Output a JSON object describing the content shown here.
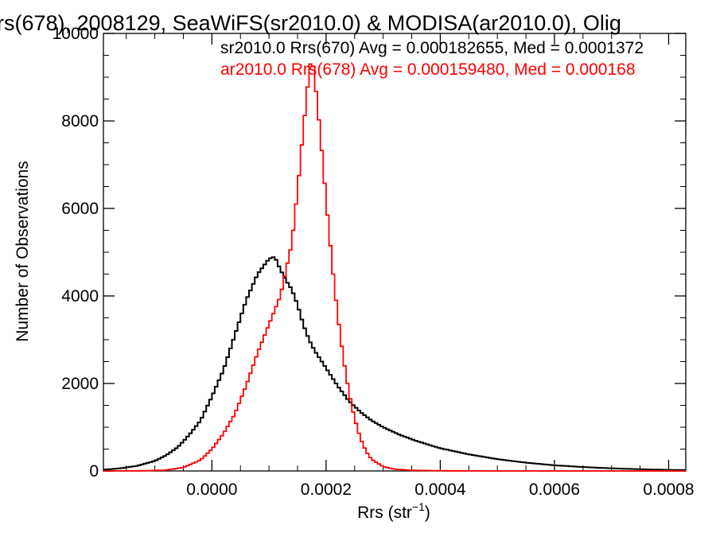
{
  "chart_data": {
    "type": "histogram",
    "title": "rs(678), 2008129, SeaWiFS(sr2010.0) & MODISA(ar2010.0), Olig",
    "xlabel_main": "Rrs (str",
    "xlabel_sup": "−1",
    "xlabel_tail": ")",
    "ylabel": "Number of Observations",
    "xlim": [
      -0.00019,
      0.00083
    ],
    "ylim": [
      0,
      10000
    ],
    "x_ticks": [
      {
        "value": 0.0,
        "label": "0.0000"
      },
      {
        "value": 0.0002,
        "label": "0.0002"
      },
      {
        "value": 0.0004,
        "label": "0.0004"
      },
      {
        "value": 0.0006,
        "label": "0.0006"
      },
      {
        "value": 0.0008,
        "label": "0.0008"
      }
    ],
    "y_ticks": [
      {
        "value": 0,
        "label": "0"
      },
      {
        "value": 2000,
        "label": "2000"
      },
      {
        "value": 4000,
        "label": "4000"
      },
      {
        "value": 6000,
        "label": "6000"
      },
      {
        "value": 8000,
        "label": "8000"
      },
      {
        "value": 10000,
        "label": "10000"
      }
    ],
    "legend": [
      {
        "text": "sr2010.0 Rrs(670) Avg = 0.000182655, Med = 0.0001372",
        "color": "#000000"
      },
      {
        "text": "ar2010.0 Rrs(678) Avg = 0.000159480, Med = 0.000168",
        "color": "#ff0000"
      }
    ],
    "series": [
      {
        "name": "sr2010.0 Rrs(670)",
        "color": "#000000",
        "points": [
          [
            -0.00019,
            30
          ],
          [
            -0.00016,
            60
          ],
          [
            -0.00013,
            120
          ],
          [
            -0.0001,
            230
          ],
          [
            -8e-05,
            360
          ],
          [
            -6e-05,
            540
          ],
          [
            -4e-05,
            820
          ],
          [
            -2e-05,
            1150
          ],
          [
            0.0,
            1700
          ],
          [
            2e-05,
            2300
          ],
          [
            4e-05,
            3100
          ],
          [
            6e-05,
            3900
          ],
          [
            8e-05,
            4500
          ],
          [
            0.0001,
            4850
          ],
          [
            0.00011,
            4900
          ],
          [
            0.00012,
            4600
          ],
          [
            0.00013,
            4350
          ],
          [
            0.00014,
            4150
          ],
          [
            0.00015,
            3800
          ],
          [
            0.00016,
            3350
          ],
          [
            0.00017,
            3000
          ],
          [
            0.00018,
            2750
          ],
          [
            0.00019,
            2550
          ],
          [
            0.0002,
            2350
          ],
          [
            0.00022,
            1950
          ],
          [
            0.00024,
            1600
          ],
          [
            0.00026,
            1350
          ],
          [
            0.00028,
            1150
          ],
          [
            0.0003,
            1000
          ],
          [
            0.00033,
            820
          ],
          [
            0.00036,
            680
          ],
          [
            0.0004,
            520
          ],
          [
            0.00045,
            380
          ],
          [
            0.0005,
            270
          ],
          [
            0.00055,
            190
          ],
          [
            0.0006,
            130
          ],
          [
            0.00065,
            90
          ],
          [
            0.0007,
            60
          ],
          [
            0.00075,
            40
          ],
          [
            0.0008,
            25
          ],
          [
            0.00083,
            20
          ]
        ]
      },
      {
        "name": "ar2010.0 Rrs(678)",
        "color": "#ff0000",
        "points": [
          [
            -0.00019,
            0
          ],
          [
            -0.00012,
            5
          ],
          [
            -8e-05,
            20
          ],
          [
            -5e-05,
            80
          ],
          [
            -2e-05,
            250
          ],
          [
            0.0,
            500
          ],
          [
            2e-05,
            850
          ],
          [
            4e-05,
            1300
          ],
          [
            6e-05,
            1950
          ],
          [
            8e-05,
            2700
          ],
          [
            0.0001,
            3350
          ],
          [
            0.00012,
            4000
          ],
          [
            0.00014,
            5200
          ],
          [
            0.00015,
            6400
          ],
          [
            0.00016,
            7800
          ],
          [
            0.00017,
            9100
          ],
          [
            0.000175,
            9500
          ],
          [
            0.00018,
            9000
          ],
          [
            0.00019,
            7700
          ],
          [
            0.0002,
            6200
          ],
          [
            0.00021,
            4800
          ],
          [
            0.00022,
            3600
          ],
          [
            0.00023,
            2600
          ],
          [
            0.00024,
            1800
          ],
          [
            0.00025,
            1200
          ],
          [
            0.00026,
            750
          ],
          [
            0.00027,
            450
          ],
          [
            0.00028,
            260
          ],
          [
            0.0003,
            100
          ],
          [
            0.00032,
            40
          ],
          [
            0.00035,
            15
          ],
          [
            0.0004,
            5
          ],
          [
            0.0005,
            0
          ],
          [
            0.00083,
            0
          ]
        ]
      }
    ]
  }
}
